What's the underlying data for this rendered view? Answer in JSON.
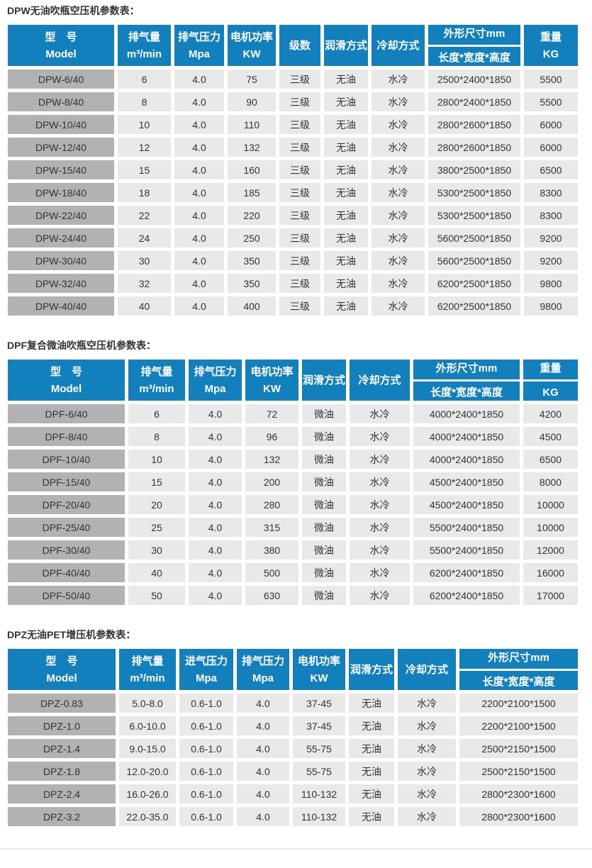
{
  "colors": {
    "header_blue": "#1380be",
    "model_cell_gray": "#b2b2b2",
    "data_cell_gray": "#e9e9e9",
    "text_dark": "#333333"
  },
  "tables": [
    {
      "title": "DPW无油吹瓶空压机参数表：",
      "columns": [
        {
          "name": "model",
          "label": "型　号",
          "sub": "Model"
        },
        {
          "name": "displacement",
          "label": "排气量",
          "sub": "m³/min"
        },
        {
          "name": "exhaust-pressure",
          "label": "排气压力",
          "sub": "Mpa"
        },
        {
          "name": "motor-power",
          "label": "电机功率",
          "sub": "KW"
        },
        {
          "name": "stages",
          "label": "级数"
        },
        {
          "name": "lubrication",
          "label": "润滑方式"
        },
        {
          "name": "cooling",
          "label": "冷却方式"
        },
        {
          "name": "dimensions",
          "label": "外形尺寸mm",
          "sub": "长度*宽度*高度",
          "divider": true
        },
        {
          "name": "weight",
          "label": "重量",
          "sub": "KG"
        }
      ],
      "rows": [
        [
          "DPW-6/40",
          "6",
          "4.0",
          "75",
          "三级",
          "无油",
          "水冷",
          "2500*2400*1850",
          "5500"
        ],
        [
          "DPW-8/40",
          "8",
          "4.0",
          "90",
          "三级",
          "无油",
          "水冷",
          "2800*2400*1850",
          "5500"
        ],
        [
          "DPW-10/40",
          "10",
          "4.0",
          "110",
          "三级",
          "无油",
          "水冷",
          "2800*2600*1850",
          "6000"
        ],
        [
          "DPW-12/40",
          "12",
          "4.0",
          "132",
          "三级",
          "无油",
          "水冷",
          "2800*2600*1850",
          "6000"
        ],
        [
          "DPW-15/40",
          "15",
          "4.0",
          "160",
          "三级",
          "无油",
          "水冷",
          "3800*2500*1850",
          "6500"
        ],
        [
          "DPW-18/40",
          "18",
          "4.0",
          "185",
          "三级",
          "无油",
          "水冷",
          "5300*2500*1850",
          "8300"
        ],
        [
          "DPW-22/40",
          "22",
          "4.0",
          "220",
          "三级",
          "无油",
          "水冷",
          "5300*2500*1850",
          "8300"
        ],
        [
          "DPW-24/40",
          "24",
          "4.0",
          "250",
          "三级",
          "无油",
          "水冷",
          "5600*2500*1850",
          "9200"
        ],
        [
          "DPW-30/40",
          "30",
          "4.0",
          "350",
          "三级",
          "无油",
          "水冷",
          "5600*2500*1850",
          "9200"
        ],
        [
          "DPW-32/40",
          "32",
          "4.0",
          "350",
          "三级",
          "无油",
          "水冷",
          "6200*2500*1850",
          "9800"
        ],
        [
          "DPW-40/40",
          "40",
          "4.0",
          "400",
          "三级",
          "无油",
          "水冷",
          "6200*2500*1850",
          "9800"
        ]
      ]
    },
    {
      "title": "DPF复合微油吹瓶空压机参数表：",
      "columns": [
        {
          "name": "model",
          "label": "型　号",
          "sub": "Model"
        },
        {
          "name": "displacement",
          "label": "排气量",
          "sub": "m³/min"
        },
        {
          "name": "exhaust-pressure",
          "label": "排气压力",
          "sub": "Mpa"
        },
        {
          "name": "motor-power",
          "label": "电机功率",
          "sub": "KW"
        },
        {
          "name": "lubrication",
          "label": "润滑方式"
        },
        {
          "name": "cooling",
          "label": "冷却方式"
        },
        {
          "name": "dimensions",
          "label": "外形尺寸mm",
          "sub": "长度*宽度*高度",
          "divider": true
        },
        {
          "name": "weight",
          "label": "重量",
          "sub": "KG",
          "divider": true
        }
      ],
      "rows": [
        [
          "DPF-6/40",
          "6",
          "4.0",
          "72",
          "微油",
          "水冷",
          "4000*2400*1850",
          "4200"
        ],
        [
          "DPF-8/40",
          "8",
          "4.0",
          "96",
          "微油",
          "水冷",
          "4000*2400*1850",
          "4500"
        ],
        [
          "DPF-10/40",
          "10",
          "4.0",
          "132",
          "微油",
          "水冷",
          "4000*2400*1850",
          "6500"
        ],
        [
          "DPF-15/40",
          "15",
          "4.0",
          "200",
          "微油",
          "水冷",
          "4500*2400*1850",
          "8000"
        ],
        [
          "DPF-20/40",
          "20",
          "4.0",
          "280",
          "微油",
          "水冷",
          "4500*2400*1850",
          "10000"
        ],
        [
          "DPF-25/40",
          "25",
          "4.0",
          "315",
          "微油",
          "水冷",
          "5500*2400*1850",
          "10000"
        ],
        [
          "DPF-30/40",
          "30",
          "4.0",
          "380",
          "微油",
          "水冷",
          "5500*2400*1850",
          "12000"
        ],
        [
          "DPF-40/40",
          "40",
          "4.0",
          "500",
          "微油",
          "水冷",
          "6200*2400*1850",
          "16000"
        ],
        [
          "DPF-50/40",
          "50",
          "4.0",
          "630",
          "微油",
          "水冷",
          "6200*2400*1850",
          "17000"
        ]
      ]
    },
    {
      "title": "DPZ无油PET增压机参数表：",
      "columns": [
        {
          "name": "model",
          "label": "型　号",
          "sub": "Model"
        },
        {
          "name": "displacement",
          "label": "排气量",
          "sub": "m³/min"
        },
        {
          "name": "intake-pressure",
          "label": "进气压力",
          "sub": "Mpa"
        },
        {
          "name": "exhaust-pressure",
          "label": "排气压力",
          "sub": "Mpa"
        },
        {
          "name": "motor-power",
          "label": "电机功率",
          "sub": "KW"
        },
        {
          "name": "lubrication",
          "label": "润滑方式"
        },
        {
          "name": "cooling",
          "label": "冷却方式"
        },
        {
          "name": "dimensions",
          "label": "外形尺寸mm",
          "sub": "长度*宽度*高度",
          "divider": true
        }
      ],
      "rows": [
        [
          "DPZ-0.83",
          "5.0-8.0",
          "0.6-1.0",
          "4.0",
          "37-45",
          "无油",
          "水冷",
          "2200*2100*1500"
        ],
        [
          "DPZ-1.0",
          "6.0-10.0",
          "0.6-1.0",
          "4.0",
          "37-45",
          "无油",
          "水冷",
          "2200*2100*1500"
        ],
        [
          "DPZ-1.4",
          "9.0-15.0",
          "0.6-1.0",
          "4.0",
          "55-75",
          "无油",
          "水冷",
          "2500*2150*1500"
        ],
        [
          "DPZ-1.8",
          "12.0-20.0",
          "0.6-1.0",
          "4.0",
          "55-75",
          "无油",
          "水冷",
          "2500*2150*1500"
        ],
        [
          "DPZ-2.4",
          "16.0-26.0",
          "0.6-1.0",
          "4.0",
          "110-132",
          "无油",
          "水冷",
          "2800*2300*1600"
        ],
        [
          "DPZ-3.2",
          "22.0-35.0",
          "0.6-1.0",
          "4.0",
          "110-132",
          "无油",
          "水冷",
          "2800*2300*1600"
        ]
      ]
    }
  ]
}
